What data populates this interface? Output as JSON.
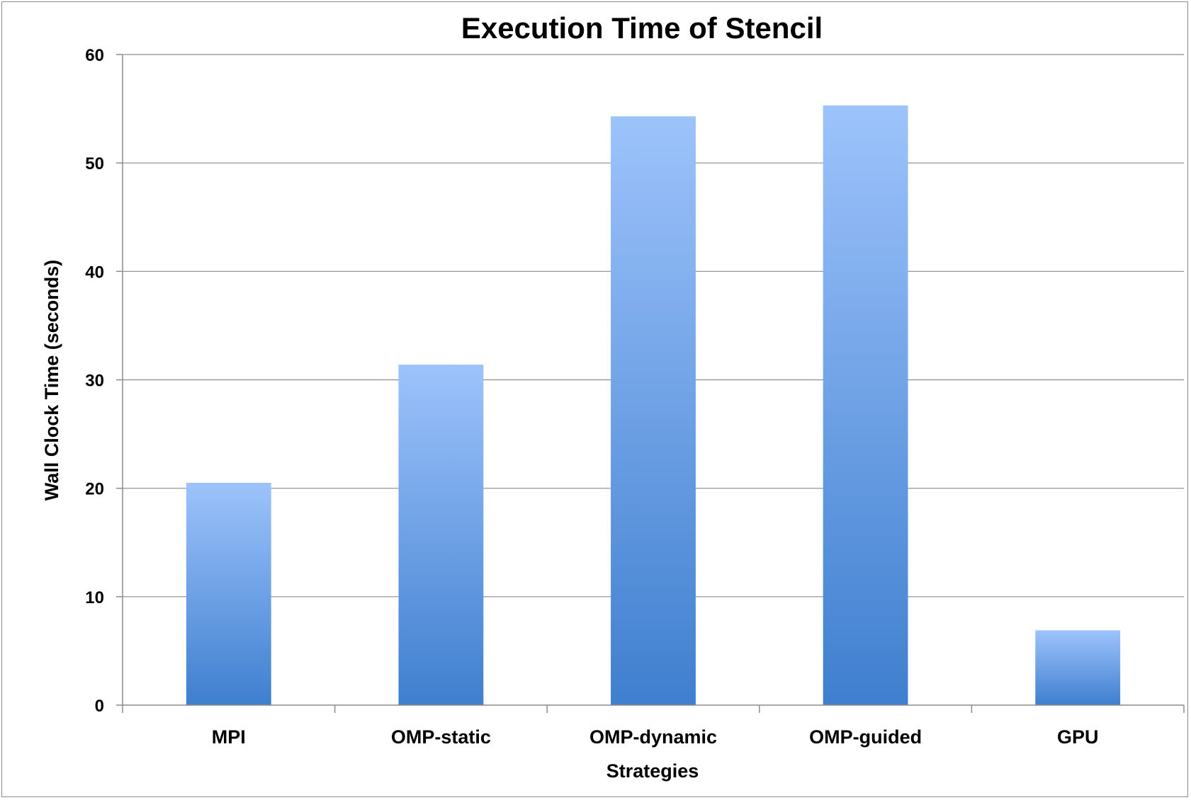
{
  "chart_data": {
    "type": "bar",
    "title": "Execution Time of Stencil",
    "xlabel": "Strategies",
    "ylabel": "Wall Clock Time (seconds)",
    "categories": [
      "MPI",
      "OMP-static",
      "OMP-dynamic",
      "OMP-guided",
      "GPU"
    ],
    "values": [
      20.5,
      31.4,
      54.3,
      55.3,
      6.9
    ],
    "ylim": [
      0,
      60
    ],
    "yticks": [
      0,
      10,
      20,
      30,
      40,
      50,
      60
    ],
    "grid": true,
    "legend": "none",
    "colors": {
      "bar_top": "#9dc3fb",
      "bar_bottom": "#3f7fcf",
      "grid": "#8c8c8c",
      "axis": "#8c8c8c"
    }
  }
}
